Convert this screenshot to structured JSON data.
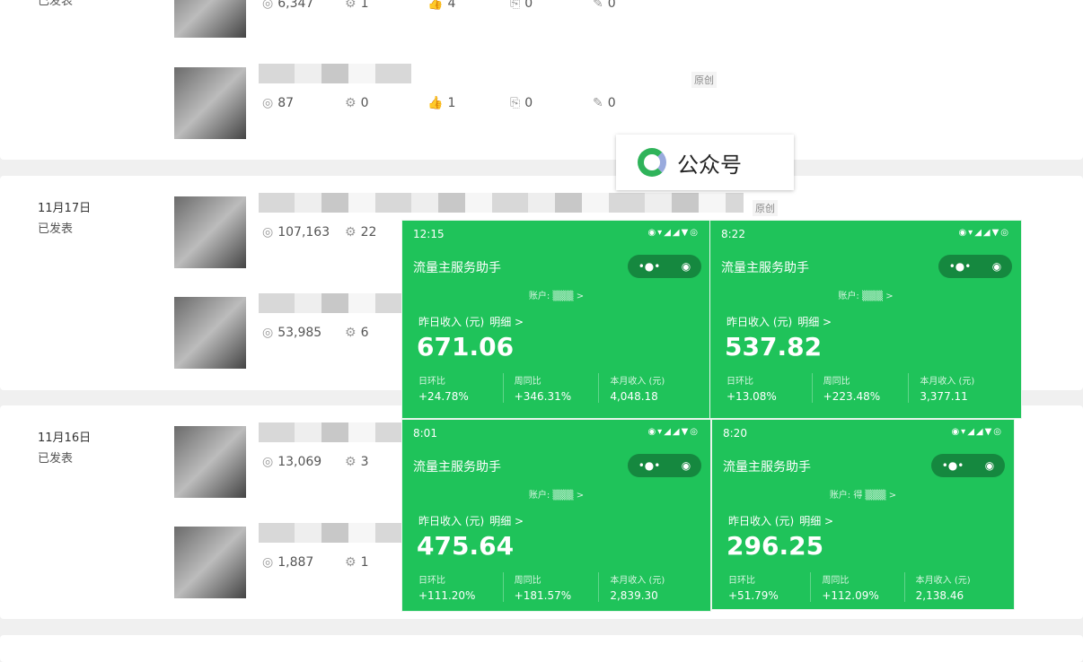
{
  "groups": [
    {
      "date": "",
      "status": "已发表",
      "articles": [
        {
          "original": "",
          "stats": [
            "6,347",
            "1",
            "4",
            "0",
            "0"
          ]
        },
        {
          "original": "原创",
          "stats": [
            "87",
            "0",
            "1",
            "0",
            "0"
          ]
        }
      ]
    },
    {
      "date": "11月17日",
      "status": "已发表",
      "articles": [
        {
          "original": "原创",
          "stats": [
            "107,163",
            "22"
          ]
        },
        {
          "original": "",
          "stats": [
            "53,985",
            "6"
          ]
        }
      ]
    },
    {
      "date": "11月16日",
      "status": "已发表",
      "articles": [
        {
          "original": "",
          "stats": [
            "13,069",
            "3"
          ]
        },
        {
          "original": "",
          "stats": [
            "1,887",
            "1"
          ]
        }
      ]
    }
  ],
  "stat_icons": [
    "eye-icon",
    "gear-icon",
    "thumbs-up-icon",
    "share-icon",
    "pen-icon"
  ],
  "overlay_label": "公众号",
  "brand_color": "#1fc35a",
  "panels": [
    {
      "time": "12:15",
      "title": "流量主服务助手",
      "account_label": "账户:",
      "yesterday_label": "昨日收入 (元)",
      "detail": "明细 >",
      "amount": "671.06",
      "day_label": "日环比",
      "day": "+24.78%",
      "week_label": "周同比",
      "week": "+346.31%",
      "month_label": "本月收入 (元)",
      "month": "4,048.18"
    },
    {
      "time": "8:22",
      "title": "流量主服务助手",
      "account_label": "账户:",
      "yesterday_label": "昨日收入 (元)",
      "detail": "明细 >",
      "amount": "537.82",
      "day_label": "日环比",
      "day": "+13.08%",
      "week_label": "周同比",
      "week": "+223.48%",
      "month_label": "本月收入 (元)",
      "month": "3,377.11"
    },
    {
      "time": "8:01",
      "title": "流量主服务助手",
      "account_label": "账户:",
      "yesterday_label": "昨日收入 (元)",
      "detail": "明细 >",
      "amount": "475.64",
      "day_label": "日环比",
      "day": "+111.20%",
      "week_label": "周同比",
      "week": "+181.57%",
      "month_label": "本月收入 (元)",
      "month": "2,839.30"
    },
    {
      "time": "8:20",
      "title": "流量主服务助手",
      "account_label": "账户: 得",
      "yesterday_label": "昨日收入 (元)",
      "detail": "明细 >",
      "amount": "296.25",
      "day_label": "日环比",
      "day": "+51.79%",
      "week_label": "周同比",
      "week": "+112.09%",
      "month_label": "本月收入 (元)",
      "month": "2,138.46"
    }
  ]
}
